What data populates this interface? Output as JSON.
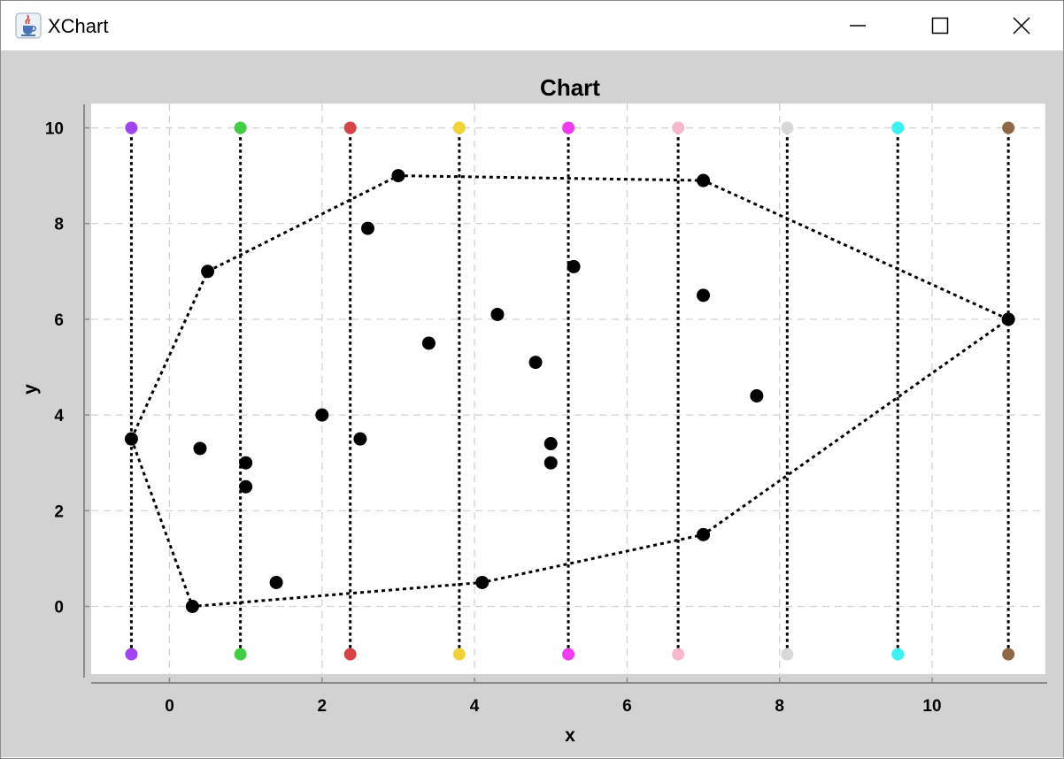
{
  "window": {
    "title": "XChart",
    "app_icon": "java-cup-icon",
    "controls": [
      "minimize-icon",
      "maximize-icon",
      "close-icon"
    ]
  },
  "chart_data": {
    "type": "scatter",
    "title": "Chart",
    "xlabel": "x",
    "ylabel": "y",
    "xlim": [
      -1.0,
      11.5
    ],
    "ylim": [
      -1.5,
      10.5
    ],
    "x_ticks": [
      0,
      2,
      4,
      6,
      8,
      10
    ],
    "y_ticks": [
      0,
      2,
      4,
      6,
      8,
      10
    ],
    "grid": true,
    "legend": "none",
    "points": {
      "color": "#000000",
      "x": [
        -0.5,
        0.3,
        0.4,
        0.5,
        1.0,
        1.0,
        1.4,
        2.0,
        2.5,
        2.6,
        3.0,
        3.4,
        4.1,
        4.3,
        4.8,
        5.0,
        5.0,
        5.3,
        7.0,
        7.0,
        7.0,
        7.7,
        11.0
      ],
      "y": [
        3.5,
        0.0,
        3.3,
        7.0,
        3.0,
        2.5,
        0.5,
        4.0,
        3.5,
        7.9,
        9.0,
        5.5,
        0.5,
        6.1,
        5.1,
        3.4,
        3.0,
        7.1,
        8.9,
        6.5,
        1.5,
        4.4,
        6.0
      ]
    },
    "hull": {
      "x": [
        -0.5,
        0.5,
        3.0,
        7.0,
        11.0,
        7.0,
        4.1,
        0.3,
        -0.5
      ],
      "y": [
        3.5,
        7.0,
        9.0,
        8.9,
        6.0,
        1.5,
        0.5,
        0.0,
        3.5
      ]
    },
    "vertical_lines": [
      {
        "x": -0.5,
        "y": [
          -1,
          10
        ],
        "color": "#a044ee"
      },
      {
        "x": 0.93,
        "y": [
          -1,
          10
        ],
        "color": "#44cc44"
      },
      {
        "x": 2.37,
        "y": [
          -1,
          10
        ],
        "color": "#d64448"
      },
      {
        "x": 3.8,
        "y": [
          -1,
          10
        ],
        "color": "#f2d23a"
      },
      {
        "x": 5.23,
        "y": [
          -1,
          10
        ],
        "color": "#f03cf0"
      },
      {
        "x": 6.67,
        "y": [
          -1,
          10
        ],
        "color": "#f6b8cc"
      },
      {
        "x": 8.1,
        "y": [
          -1,
          10
        ],
        "color": "#d8d8d8"
      },
      {
        "x": 9.55,
        "y": [
          -1,
          10
        ],
        "color": "#3ef2f2"
      },
      {
        "x": 11.0,
        "y": [
          -1,
          10
        ],
        "color": "#8f6848"
      }
    ]
  }
}
